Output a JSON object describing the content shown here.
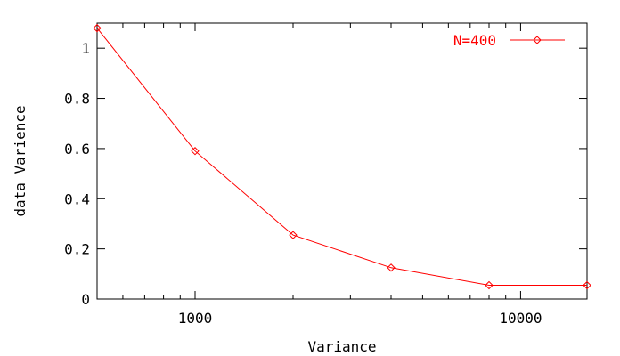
{
  "chart_data": {
    "type": "line",
    "xscale": "log",
    "xlim": [
      500,
      16000
    ],
    "ylim": [
      0,
      1.1
    ],
    "grid": false,
    "legend_position": "top-right",
    "xlabel": "Variance",
    "ylabel": "data Varience",
    "x_tick_labels": [
      {
        "value": 1000,
        "label": "1000"
      },
      {
        "value": 10000,
        "label": "10000"
      }
    ],
    "x_minor_ticks": [
      600,
      700,
      800,
      900,
      2000,
      3000,
      4000,
      5000,
      6000,
      7000,
      8000,
      9000
    ],
    "y_tick_labels": [
      {
        "value": 0,
        "label": "0"
      },
      {
        "value": 0.2,
        "label": "0.2"
      },
      {
        "value": 0.4,
        "label": "0.4"
      },
      {
        "value": 0.6,
        "label": "0.6"
      },
      {
        "value": 0.8,
        "label": "0.8"
      },
      {
        "value": 1,
        "label": "1"
      }
    ],
    "series": [
      {
        "name": "N=400",
        "color": "#ff0000",
        "marker": "diamond",
        "x": [
          500,
          1000,
          2000,
          4000,
          8000,
          16000
        ],
        "y": [
          1.08,
          0.59,
          0.255,
          0.125,
          0.055,
          0.055
        ]
      }
    ]
  }
}
